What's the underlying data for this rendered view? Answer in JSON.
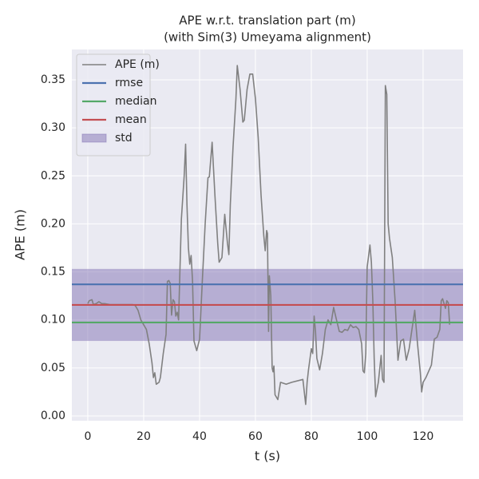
{
  "chart_data": {
    "type": "line",
    "title": "APE w.r.t. translation part (m)",
    "subtitle": "(with Sim(3) Umeyama alignment)",
    "xlabel": "t (s)",
    "ylabel": "APE (m)",
    "xlim": [
      -5.7,
      134.3
    ],
    "ylim": [
      -0.005,
      0.3816
    ],
    "xticks": [
      0,
      20,
      40,
      60,
      80,
      100,
      120
    ],
    "yticks": [
      {
        "value": 0,
        "label": "0.00"
      },
      0.05,
      {
        "value": 0.1,
        "label": "0.10"
      },
      0.15,
      {
        "value": 0.2,
        "label": "0.20"
      },
      0.25,
      {
        "value": 0.3,
        "label": "0.30"
      },
      0.35
    ],
    "grid": true,
    "legend": "upper left",
    "x": [
      0,
      0.5,
      1.5,
      2,
      3,
      4,
      5,
      6,
      8,
      10,
      12,
      14,
      16,
      17,
      18,
      19,
      20,
      21,
      22,
      23,
      23.5,
      24,
      24.5,
      25.5,
      26,
      27,
      28,
      28.5,
      29,
      29.5,
      30,
      30.5,
      31,
      31.5,
      32,
      32.5,
      33,
      33.5,
      34.5,
      35,
      35.5,
      36,
      36.5,
      37,
      37.5,
      38,
      38.5,
      39,
      40,
      41,
      42,
      43,
      43.5,
      44.5,
      45.5,
      46.5,
      47,
      48,
      49,
      50,
      50.5,
      51,
      52,
      53,
      53.5,
      54.5,
      55.5,
      56,
      57,
      58,
      59,
      60,
      61,
      62,
      63,
      63.5,
      64,
      64.3,
      64.7,
      65,
      65.5,
      66,
      66.3,
      66.6,
      67,
      68,
      69,
      71,
      73,
      77,
      78,
      78.5,
      79,
      80,
      80.5,
      81,
      81.5,
      82,
      83,
      84,
      85,
      86,
      87,
      88,
      89,
      90,
      91,
      92,
      93,
      94,
      95,
      96,
      97,
      98,
      98.5,
      99,
      99.5,
      100,
      101,
      101.5,
      102,
      102.5,
      103,
      104,
      105,
      105.5,
      106,
      106.5,
      107,
      107.5,
      108,
      109,
      110,
      111,
      112,
      113,
      114,
      115,
      116,
      117,
      118,
      119,
      119.5,
      120,
      121,
      123,
      124,
      125,
      126,
      126.5,
      127,
      128,
      128.5,
      129,
      129.5
    ],
    "series": [
      {
        "name": "APE (m)",
        "color": "#808080",
        "values": [
          0.117,
          0.12,
          0.121,
          0.116,
          0.117,
          0.119,
          0.117,
          0.117,
          0.116,
          0.116,
          0.116,
          0.116,
          0.116,
          0.115,
          0.11,
          0.1,
          0.095,
          0.09,
          0.075,
          0.055,
          0.04,
          0.045,
          0.033,
          0.035,
          0.04,
          0.065,
          0.085,
          0.14,
          0.141,
          0.138,
          0.105,
          0.121,
          0.119,
          0.104,
          0.108,
          0.1,
          0.155,
          0.205,
          0.25,
          0.283,
          0.22,
          0.175,
          0.158,
          0.167,
          0.14,
          0.078,
          0.073,
          0.068,
          0.08,
          0.14,
          0.2,
          0.248,
          0.249,
          0.285,
          0.23,
          0.18,
          0.16,
          0.165,
          0.21,
          0.18,
          0.168,
          0.22,
          0.28,
          0.33,
          0.365,
          0.34,
          0.306,
          0.308,
          0.34,
          0.356,
          0.356,
          0.33,
          0.29,
          0.23,
          0.188,
          0.172,
          0.193,
          0.19,
          0.088,
          0.146,
          0.125,
          0.05,
          0.046,
          0.052,
          0.022,
          0.017,
          0.035,
          0.033,
          0.035,
          0.038,
          0.012,
          0.035,
          0.048,
          0.07,
          0.065,
          0.104,
          0.088,
          0.06,
          0.048,
          0.065,
          0.09,
          0.1,
          0.095,
          0.113,
          0.1,
          0.088,
          0.087,
          0.09,
          0.089,
          0.095,
          0.092,
          0.093,
          0.09,
          0.075,
          0.047,
          0.045,
          0.065,
          0.155,
          0.178,
          0.16,
          0.12,
          0.06,
          0.02,
          0.035,
          0.063,
          0.038,
          0.035,
          0.344,
          0.335,
          0.2,
          0.185,
          0.165,
          0.12,
          0.058,
          0.078,
          0.08,
          0.058,
          0.07,
          0.09,
          0.11,
          0.075,
          0.045,
          0.025,
          0.035,
          0.04,
          0.053,
          0.08,
          0.082,
          0.09,
          0.12,
          0.122,
          0.112,
          0.12,
          0.118,
          0.095
        ]
      }
    ],
    "hlines": [
      {
        "name": "rmse",
        "color": "#4c72b0",
        "value": 0.137
      },
      {
        "name": "median",
        "color": "#55a868",
        "value": 0.0973
      },
      {
        "name": "mean",
        "color": "#c44e52",
        "value": 0.1156
      }
    ],
    "band": {
      "name": "std",
      "color": "#8172b3",
      "value": 0.0375
    }
  }
}
